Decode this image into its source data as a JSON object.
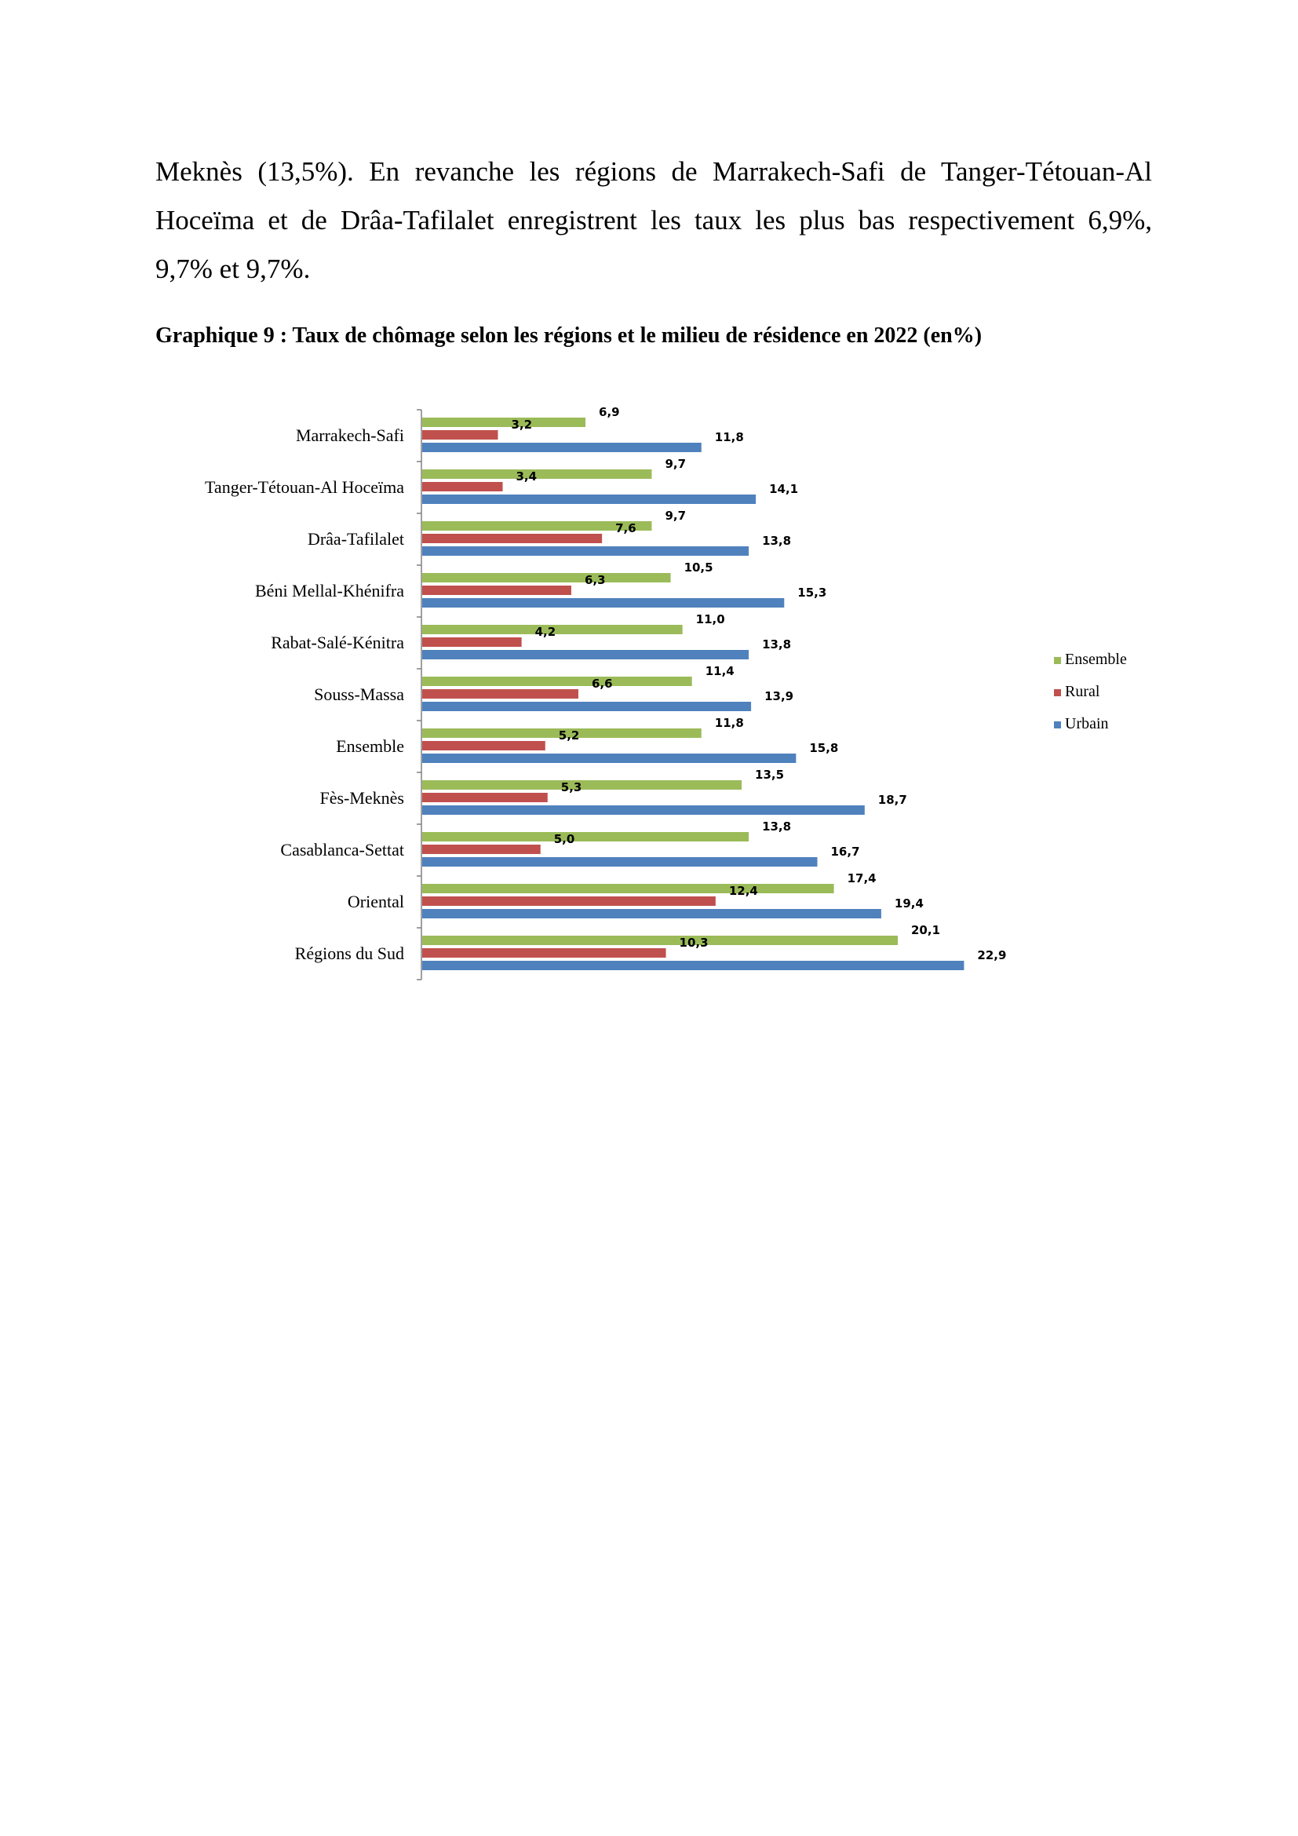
{
  "document": {
    "paragraph_lines": [
      "Meknès (13,5%). En revanche les régions de Marrakech-Safi de Tanger-Tétouan-Al",
      "Hoceïma et de Drâa-Tafilalet enregistrent les taux les plus bas respectivement 6,9%,",
      "9,7% et 9,7%."
    ],
    "chart_title": "Graphique 9 : Taux de chômage selon les régions et le milieu de résidence en 2022 (en%)"
  },
  "chart_data": {
    "type": "bar",
    "orientation": "horizontal",
    "title": "",
    "xlabel": "",
    "ylabel": "",
    "categories": [
      "Marrakech-Safi",
      "Tanger-Tétouan-Al Hoceïma",
      "Drâa-Tafilalet",
      "Béni Mellal-Khénifra",
      "Rabat-Salé-Kénitra",
      "Souss-Massa",
      "Ensemble",
      "Fès-Meknès",
      "Casablanca-Settat",
      "Oriental",
      "Régions du Sud"
    ],
    "series": [
      {
        "name": "Ensemble",
        "color": "#9BBB59",
        "values": [
          6.9,
          9.7,
          9.7,
          10.5,
          11.0,
          11.4,
          11.8,
          13.5,
          13.8,
          17.4,
          20.1
        ],
        "labels": [
          "6,9",
          "9,7",
          "9,7",
          "10,5",
          "11,0",
          "11,4",
          "11,8",
          "13,5",
          "13,8",
          "17,4",
          "20,1"
        ]
      },
      {
        "name": "Rural",
        "color": "#C0504D",
        "values": [
          3.2,
          3.4,
          7.6,
          6.3,
          4.2,
          6.6,
          5.2,
          5.3,
          5.0,
          12.4,
          10.3
        ],
        "labels": [
          "3,2",
          "3,4",
          "7,6",
          "6,3",
          "4,2",
          "6,6",
          "5,2",
          "5,3",
          "5,0",
          "12,4",
          "10,3"
        ]
      },
      {
        "name": "Urbain",
        "color": "#4F81BD",
        "values": [
          11.8,
          14.1,
          13.8,
          15.3,
          13.8,
          13.9,
          15.8,
          18.7,
          16.7,
          19.4,
          22.9
        ],
        "labels": [
          "11,8",
          "14,1",
          "13,8",
          "15,3",
          "13,8",
          "13,9",
          "15,8",
          "18,7",
          "16,7",
          "19,4",
          "22,9"
        ]
      }
    ],
    "legend_position": "right",
    "grid": false,
    "xlim": [
      0,
      25
    ]
  }
}
